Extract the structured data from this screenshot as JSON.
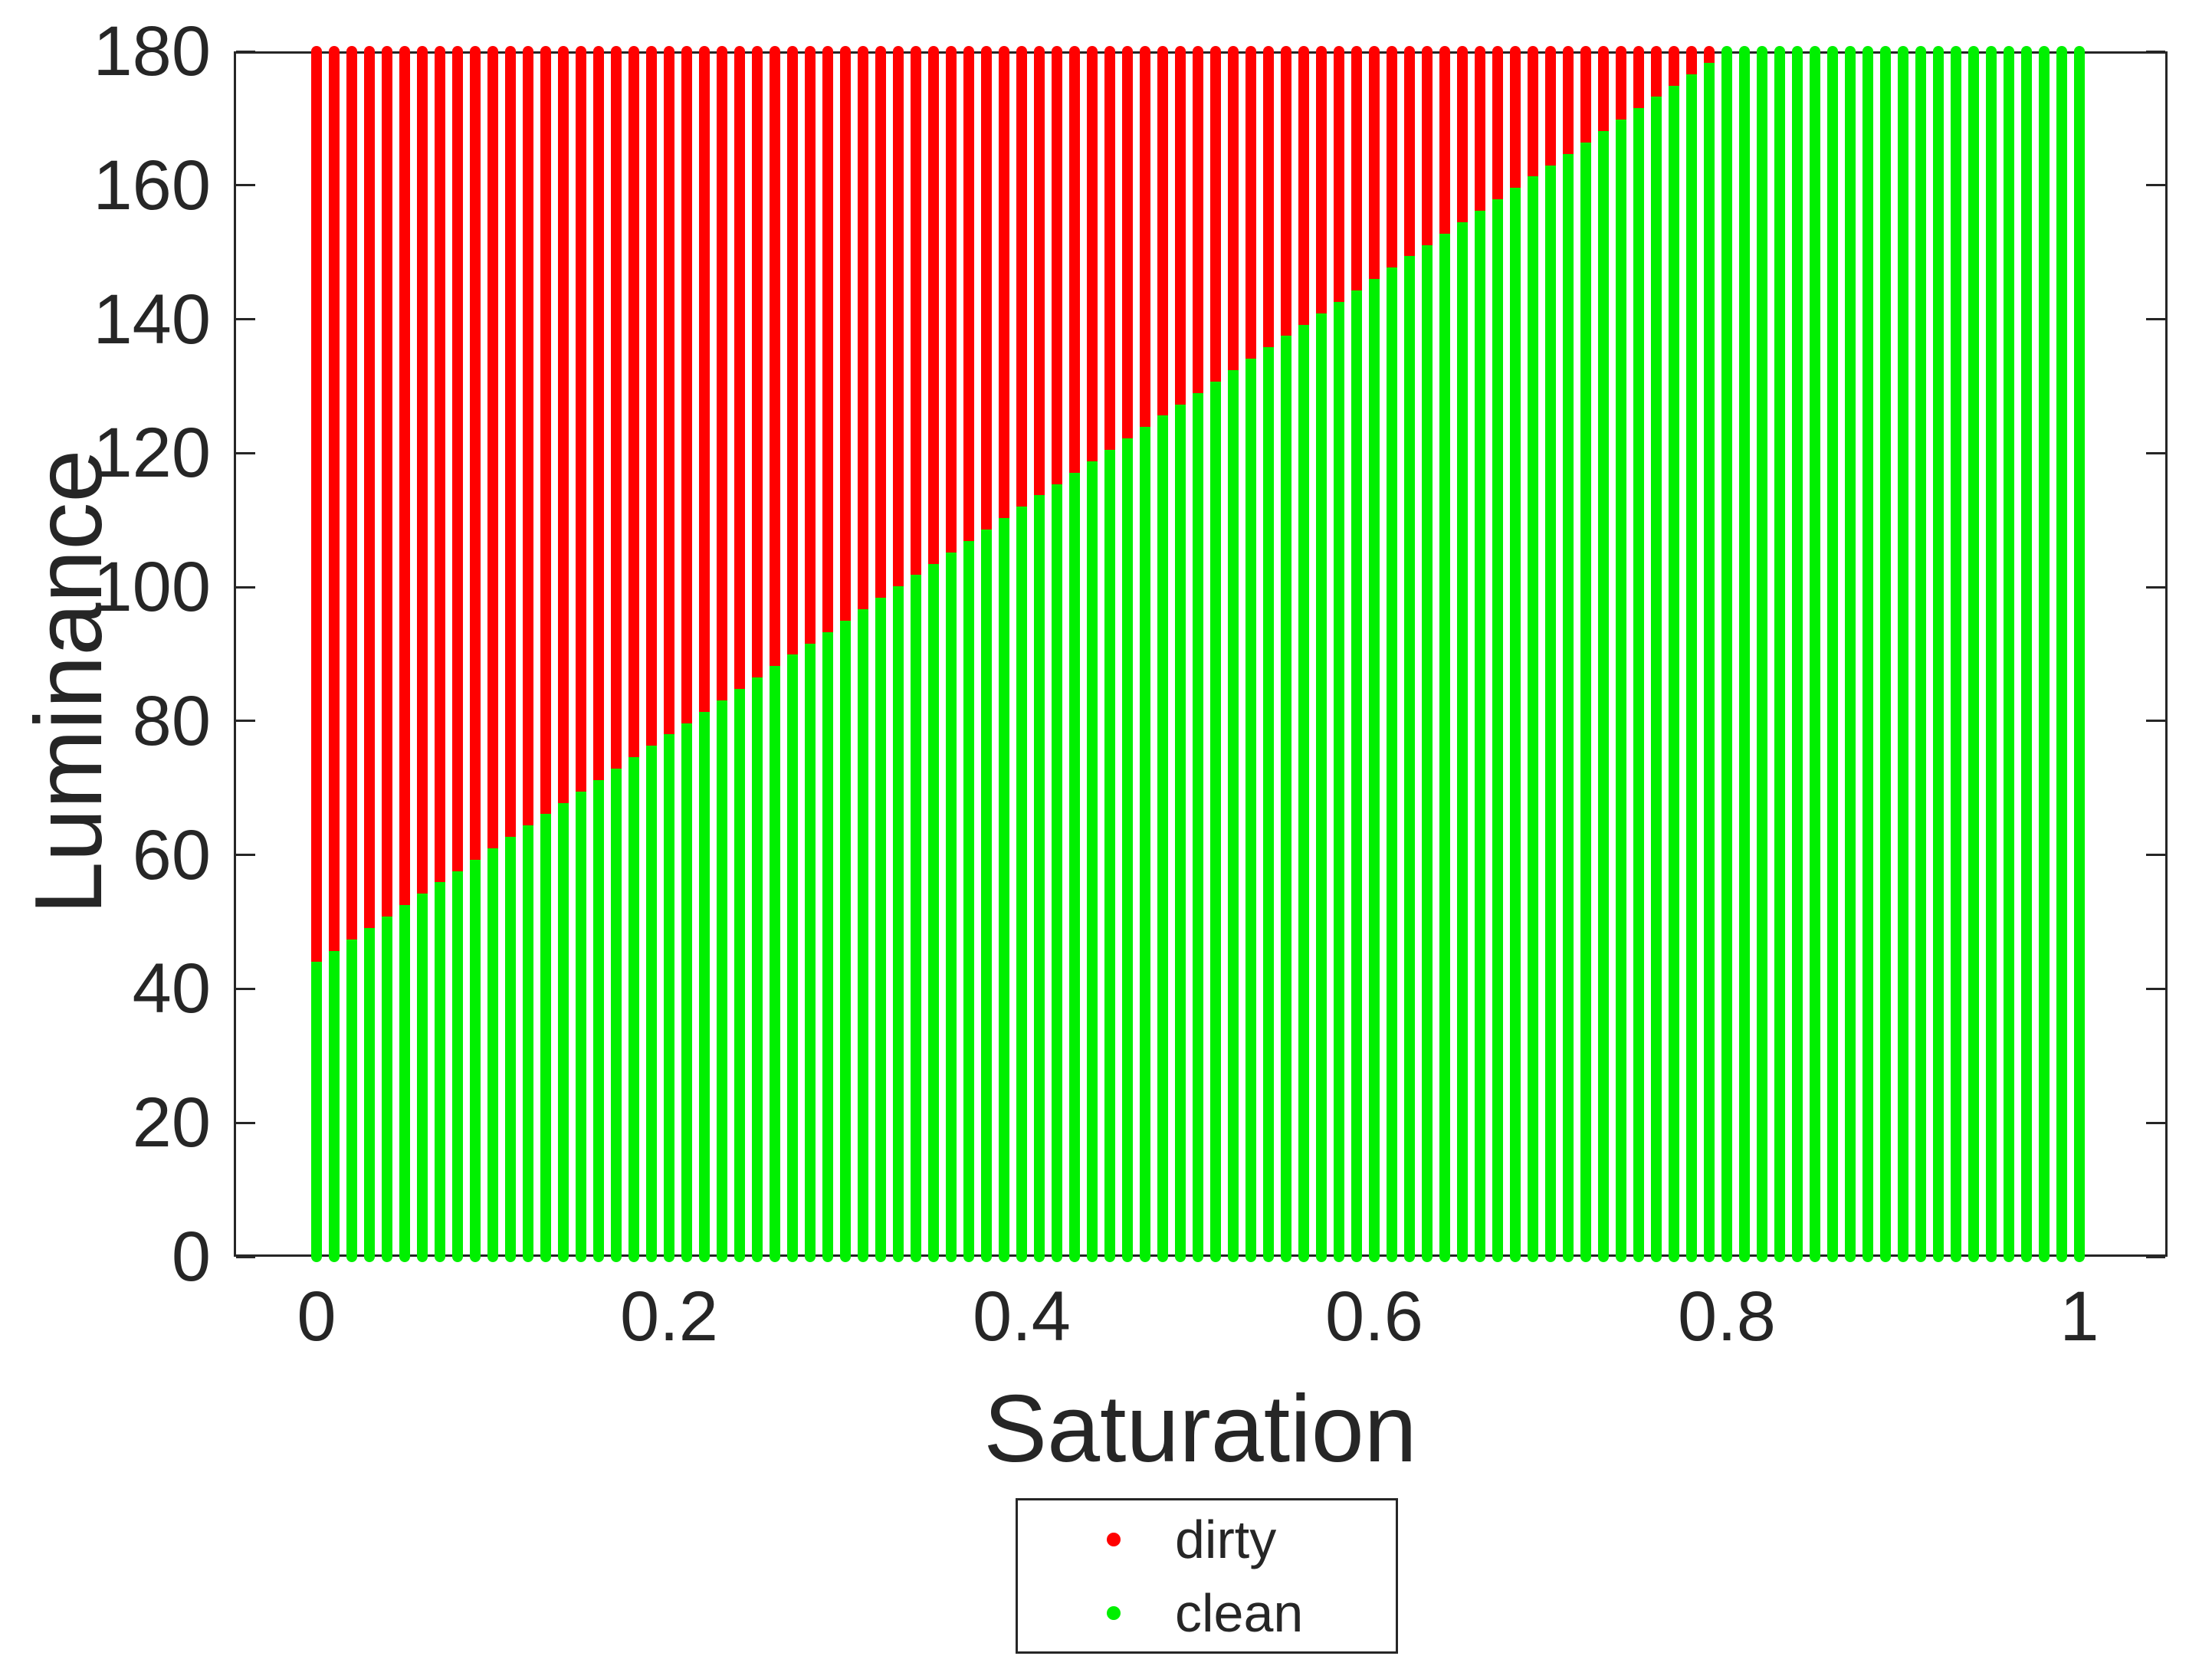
{
  "figure": {
    "background": "#ffffff",
    "axis_color": "#262626",
    "text_color": "#262626"
  },
  "chart_data": {
    "type": "scatter",
    "title": "",
    "xlabel": "Saturation",
    "ylabel": "Luminance",
    "xlim": [
      -0.047,
      1.05
    ],
    "ylim": [
      0,
      180
    ],
    "grid": false,
    "legend_position": "below-center",
    "xticks": [
      0,
      0.2,
      0.4,
      0.6,
      0.8,
      1
    ],
    "x_tick_labels": [
      "0",
      "0.2",
      "0.4",
      "0.6",
      "0.8",
      "1"
    ],
    "yticks": [
      0,
      20,
      40,
      60,
      80,
      100,
      120,
      140,
      160,
      180
    ],
    "y_tick_labels": [
      "0",
      "20",
      "40",
      "60",
      "80",
      "100",
      "120",
      "140",
      "160",
      "180"
    ],
    "series": [
      {
        "name": "dirty",
        "color": "#ff0000",
        "marker": "filled-circle",
        "region": "luminance above decision boundary"
      },
      {
        "name": "clean",
        "color": "#00f000",
        "marker": "filled-circle",
        "region": "luminance below decision boundary"
      }
    ],
    "saturation": {
      "start": 0,
      "stop": 1,
      "step": 0.01,
      "count": 101
    },
    "luminance": {
      "start": 0,
      "stop": 180,
      "step": 1
    },
    "decision_boundary": {
      "description": "clean if luminance < 44 + 170 * saturation (capped at 180); dirty otherwise",
      "intercept": 44,
      "slope": 170,
      "cap": 180
    },
    "split_per_column": [
      44,
      45.7,
      47.4,
      49.1,
      50.8,
      52.5,
      54.2,
      55.9,
      57.6,
      59.3,
      61,
      62.7,
      64.4,
      66.1,
      67.8,
      69.5,
      71.2,
      72.9,
      74.6,
      76.3,
      78,
      79.7,
      81.4,
      83.1,
      84.8,
      86.5,
      88.2,
      89.9,
      91.6,
      93.3,
      95,
      96.7,
      98.4,
      100.1,
      101.8,
      103.5,
      105.2,
      106.9,
      108.6,
      110.3,
      112,
      113.7,
      115.4,
      117.1,
      118.8,
      120.5,
      122.2,
      123.9,
      125.6,
      127.3,
      129,
      130.7,
      132.4,
      134.1,
      135.8,
      137.5,
      139.2,
      140.9,
      142.6,
      144.3,
      146,
      147.7,
      149.4,
      151.1,
      152.8,
      154.5,
      156.2,
      157.9,
      159.6,
      161.3,
      163,
      164.7,
      166.4,
      168.1,
      169.8,
      171.5,
      173.2,
      174.9,
      176.6,
      178.3,
      180,
      180,
      180,
      180,
      180,
      180,
      180,
      180,
      180,
      180,
      180,
      180,
      180,
      180,
      180,
      180,
      180,
      180,
      180,
      180,
      180
    ]
  }
}
